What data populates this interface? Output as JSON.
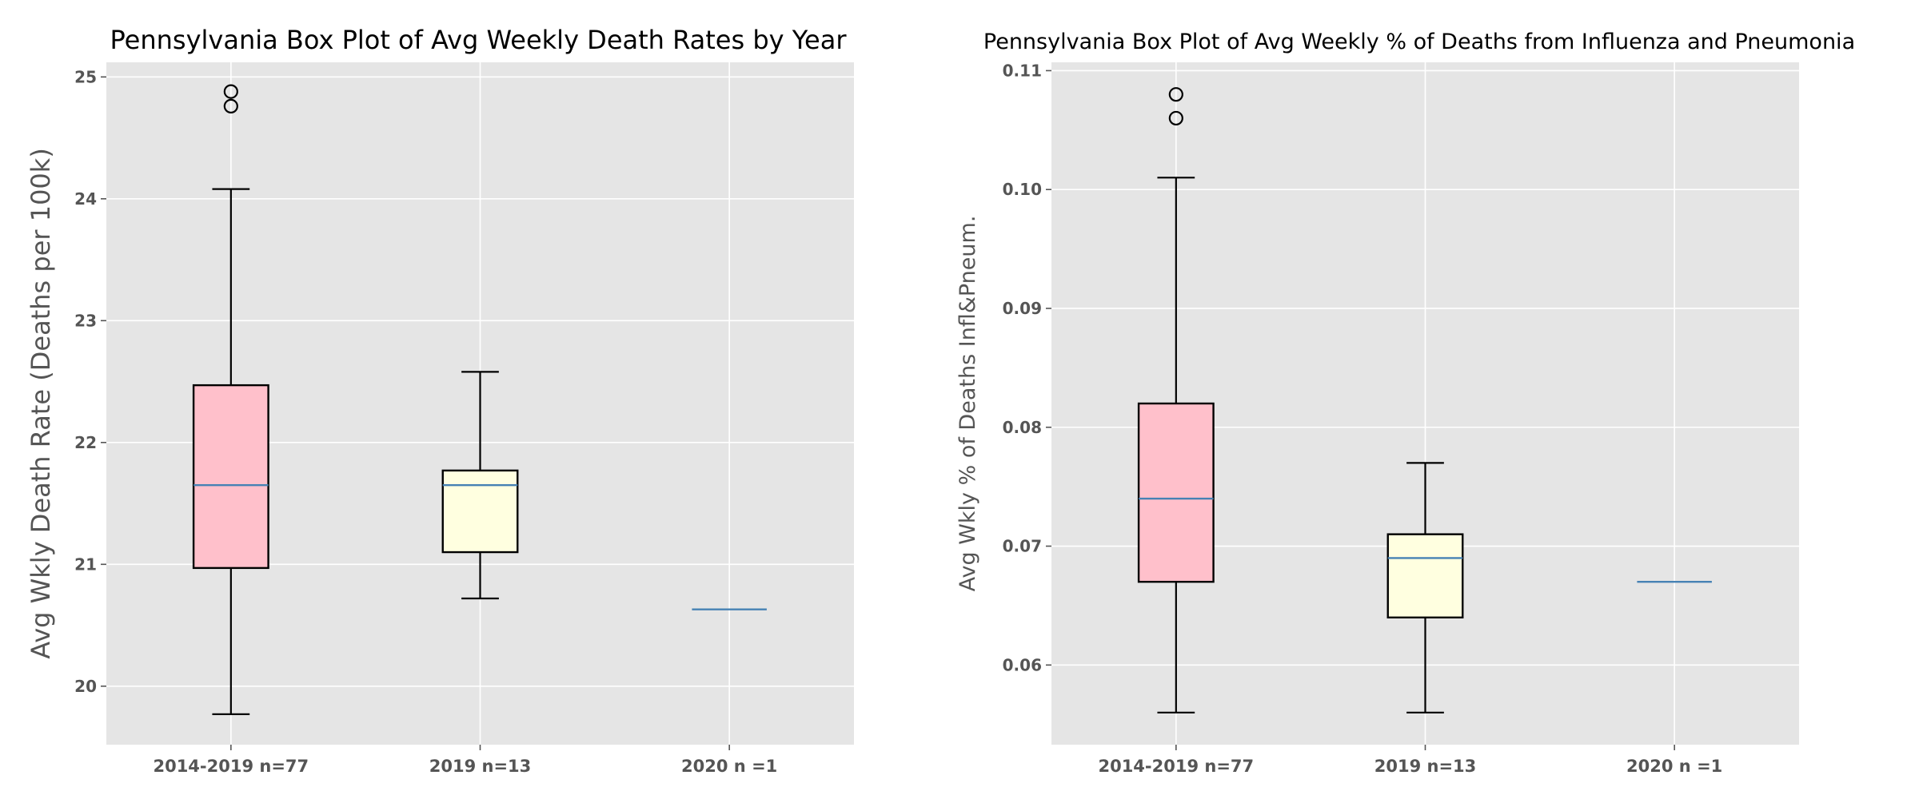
{
  "chart_data": [
    {
      "type": "box",
      "title": "Pennsylvania Box Plot of Avg Weekly Death Rates by Year",
      "xlabel": "",
      "ylabel": "Avg Wkly Death Rate (Deaths per 100k)",
      "ylim": [
        19.52,
        25.12
      ],
      "yticks": [
        "20",
        "21",
        "22",
        "23",
        "24",
        "25"
      ],
      "grid": true,
      "categories": [
        "2014-2019 n=77",
        "2019 n=13",
        "2020 n =1"
      ],
      "boxes": [
        {
          "label": "2014-2019 n=77",
          "whislo": 19.77,
          "q1": 20.97,
          "med": 21.65,
          "q3": 22.47,
          "whishi": 24.08,
          "fliers": [
            24.76,
            24.88
          ],
          "fill": "#ffc0cb"
        },
        {
          "label": "2019 n=13",
          "whislo": 20.72,
          "q1": 21.1,
          "med": 21.65,
          "q3": 21.77,
          "whishi": 22.58,
          "fliers": [],
          "fill": "#ffffe0"
        },
        {
          "label": "2020 n =1",
          "whislo": 20.63,
          "q1": 20.63,
          "med": 20.63,
          "q3": 20.63,
          "whishi": 20.63,
          "fliers": [],
          "fill": "#ffffe0"
        }
      ],
      "colors": {
        "median": "#4682b4",
        "background": "#e5e5e5",
        "grid": "#ffffff"
      }
    },
    {
      "type": "box",
      "title": "Pennsylvania Box Plot of Avg Weekly % of Deaths from Influenza and Pneumonia",
      "xlabel": "",
      "ylabel": "Avg Wkly % of Deaths Infl&Pneum.",
      "ylim": [
        0.0533,
        0.1107
      ],
      "yticks": [
        "0.06",
        "0.07",
        "0.08",
        "0.09",
        "0.10",
        "0.11"
      ],
      "grid": true,
      "categories": [
        "2014-2019 n=77",
        "2019 n=13",
        "2020 n =1"
      ],
      "boxes": [
        {
          "label": "2014-2019 n=77",
          "whislo": 0.056,
          "q1": 0.067,
          "med": 0.074,
          "q3": 0.082,
          "whishi": 0.101,
          "fliers": [
            0.106,
            0.108
          ],
          "fill": "#ffc0cb"
        },
        {
          "label": "2019 n=13",
          "whislo": 0.056,
          "q1": 0.064,
          "med": 0.069,
          "q3": 0.071,
          "whishi": 0.077,
          "fliers": [],
          "fill": "#ffffe0"
        },
        {
          "label": "2020 n =1",
          "whislo": 0.067,
          "q1": 0.067,
          "med": 0.067,
          "q3": 0.067,
          "whishi": 0.067,
          "fliers": [],
          "fill": "#ffffe0"
        }
      ],
      "colors": {
        "median": "#4682b4",
        "background": "#e5e5e5",
        "grid": "#ffffff"
      }
    }
  ]
}
